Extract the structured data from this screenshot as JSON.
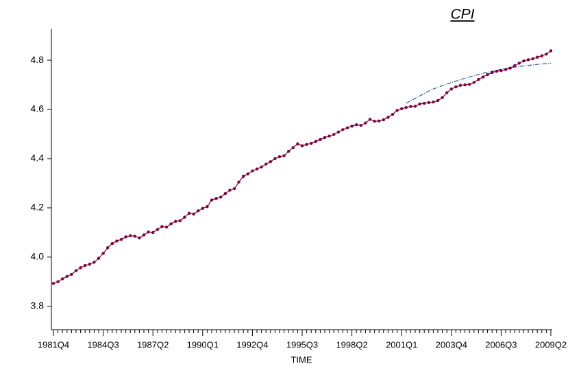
{
  "chart_data": {
    "type": "line",
    "title": "CPI",
    "x_label": "TIME",
    "categories": [
      "1981Q4",
      null,
      null,
      null,
      null,
      null,
      null,
      null,
      null,
      null,
      null,
      "1984Q3",
      null,
      null,
      null,
      null,
      null,
      null,
      null,
      null,
      null,
      null,
      "1987Q2",
      null,
      null,
      null,
      null,
      null,
      null,
      null,
      null,
      null,
      null,
      "1990Q1",
      null,
      null,
      null,
      null,
      null,
      null,
      null,
      null,
      null,
      null,
      "1992Q4",
      null,
      null,
      null,
      null,
      null,
      null,
      null,
      null,
      null,
      null,
      "1995Q3",
      null,
      null,
      null,
      null,
      null,
      null,
      null,
      null,
      null,
      null,
      "1998Q2",
      null,
      null,
      null,
      null,
      null,
      null,
      null,
      null,
      null,
      null,
      "2001Q1",
      null,
      null,
      null,
      null,
      null,
      null,
      null,
      null,
      null,
      null,
      "2003Q4",
      null,
      null,
      null,
      null,
      null,
      null,
      null,
      null,
      null,
      null,
      "2006Q3",
      null,
      null,
      null,
      null,
      null,
      null,
      null,
      null,
      null,
      null,
      "2009Q2"
    ],
    "series": [
      {
        "color": "#800040",
        "markers": true,
        "dashed": false,
        "values": [
          3.893,
          3.9,
          3.912,
          3.922,
          3.93,
          3.945,
          3.957,
          3.966,
          3.971,
          3.979,
          3.995,
          4.015,
          4.038,
          4.055,
          4.065,
          4.072,
          4.082,
          4.087,
          4.085,
          4.078,
          4.09,
          4.102,
          4.1,
          4.112,
          4.124,
          4.122,
          4.135,
          4.145,
          4.148,
          4.162,
          4.178,
          4.175,
          4.188,
          4.198,
          4.205,
          4.232,
          4.238,
          4.244,
          4.258,
          4.272,
          4.278,
          4.305,
          4.328,
          4.338,
          4.35,
          4.358,
          4.366,
          4.378,
          4.388,
          4.4,
          4.408,
          4.412,
          4.43,
          4.445,
          4.46,
          4.452,
          4.458,
          4.462,
          4.47,
          4.478,
          4.486,
          4.492,
          4.498,
          4.508,
          4.518,
          4.525,
          4.532,
          4.538,
          4.535,
          4.545,
          4.56,
          4.552,
          4.553,
          4.558,
          4.568,
          4.58,
          4.596,
          4.603,
          4.608,
          4.612,
          4.613,
          4.622,
          4.625,
          4.628,
          4.63,
          4.636,
          4.648,
          4.668,
          4.683,
          4.692,
          4.698,
          4.7,
          4.702,
          4.71,
          4.722,
          4.732,
          4.742,
          4.75,
          4.755,
          4.758,
          4.762,
          4.768,
          4.778,
          4.788,
          4.797,
          4.802,
          4.806,
          4.812,
          4.818,
          4.825,
          4.838
        ]
      },
      {
        "color": "#1f4e9c",
        "markers": false,
        "dashed": true,
        "values": [
          null,
          null,
          null,
          null,
          null,
          null,
          null,
          null,
          null,
          null,
          null,
          null,
          null,
          null,
          null,
          null,
          null,
          null,
          null,
          null,
          null,
          null,
          null,
          null,
          null,
          null,
          null,
          null,
          null,
          null,
          null,
          null,
          null,
          null,
          null,
          null,
          null,
          null,
          null,
          null,
          null,
          null,
          null,
          null,
          null,
          null,
          null,
          null,
          null,
          null,
          null,
          null,
          null,
          null,
          null,
          null,
          null,
          null,
          null,
          null,
          null,
          null,
          null,
          null,
          null,
          null,
          null,
          null,
          null,
          null,
          null,
          null,
          null,
          null,
          null,
          null,
          null,
          null,
          4.625,
          4.635,
          4.645,
          4.655,
          4.665,
          4.675,
          4.683,
          4.69,
          4.697,
          4.703,
          4.709,
          4.715,
          4.721,
          4.727,
          4.732,
          4.737,
          4.742,
          4.747,
          4.751,
          4.755,
          4.759,
          4.763,
          4.766,
          4.769,
          4.772,
          4.775,
          4.777,
          4.779,
          4.781,
          4.783,
          4.785,
          4.786,
          4.788
        ]
      }
    ],
    "ylim": [
      3.705,
      4.928
    ],
    "yticks": [
      3.8,
      {
        "value": 4,
        "label": "4.0"
      },
      4.2,
      4.4,
      4.6,
      4.8
    ]
  }
}
